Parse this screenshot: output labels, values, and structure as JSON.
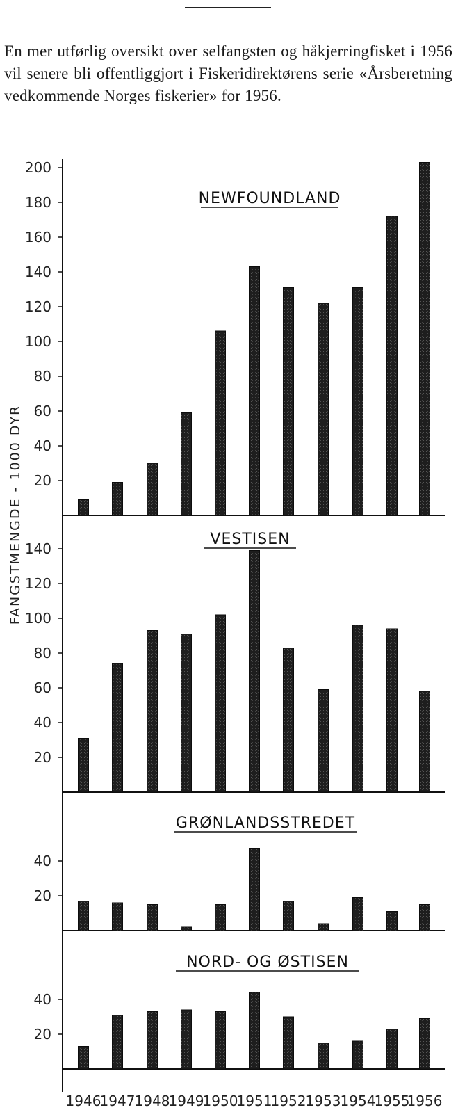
{
  "intro_text": "En mer utførlig oversikt over selfangsten og håkjerringfisket i 1956 vil senere bli offentliggjort i Fiskeridirektørens serie «Årsberetning vedkommende Norges fiskerier» for 1956.",
  "chart_data": {
    "type": "bar",
    "ylabel": "FANGSTMENGDE - 1000 DYR",
    "categories": [
      "1946",
      "1947",
      "1948",
      "1949",
      "1950",
      "1951",
      "1952",
      "1953",
      "1954",
      "1955",
      "1956"
    ],
    "panels": [
      {
        "title": "NEWFOUNDLAND",
        "ylim": [
          0,
          200
        ],
        "yticks": [
          20,
          40,
          60,
          80,
          100,
          120,
          140,
          160,
          180,
          200
        ],
        "values": [
          9,
          19,
          30,
          59,
          106,
          143,
          131,
          122,
          131,
          172,
          203
        ]
      },
      {
        "title": "VESTISEN",
        "ylim": [
          0,
          140
        ],
        "yticks": [
          20,
          40,
          60,
          80,
          100,
          120,
          140
        ],
        "values": [
          31,
          74,
          93,
          91,
          102,
          139,
          83,
          59,
          96,
          94,
          58
        ]
      },
      {
        "title": "GRØNLANDSSTREDET",
        "ylim": [
          0,
          50
        ],
        "yticks": [
          20,
          40
        ],
        "values": [
          17,
          16,
          15,
          2,
          15,
          47,
          17,
          4,
          19,
          11,
          15
        ]
      },
      {
        "title": "NORD- OG ØSTISEN",
        "ylim": [
          0,
          50
        ],
        "yticks": [
          20,
          40
        ],
        "values": [
          13,
          31,
          33,
          34,
          33,
          44,
          30,
          15,
          16,
          23,
          29
        ]
      }
    ]
  }
}
